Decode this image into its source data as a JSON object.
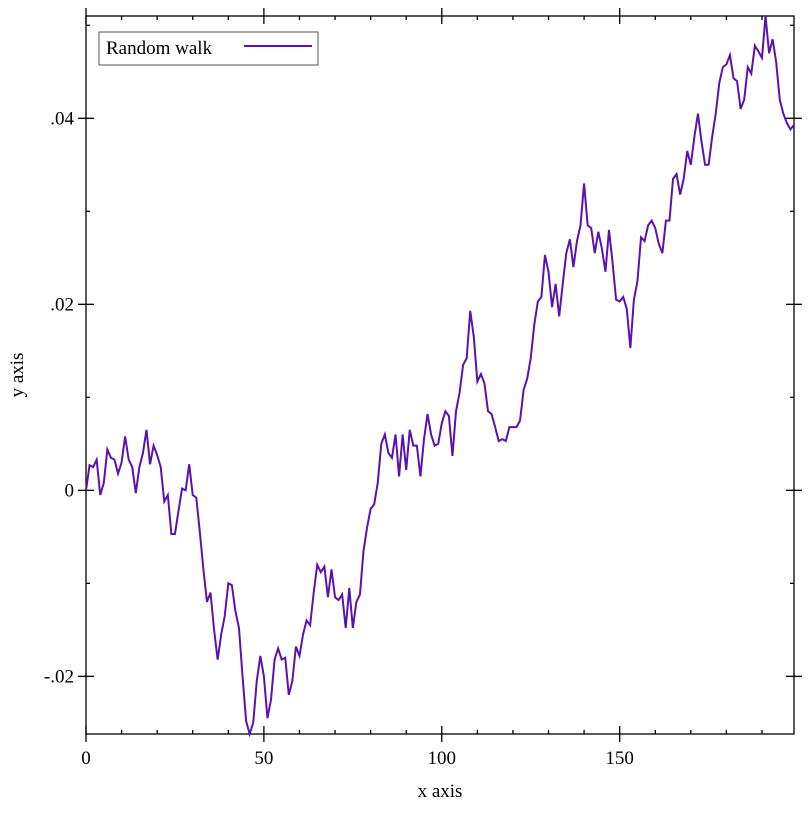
{
  "chart_data": {
    "type": "line",
    "xlabel": "x axis",
    "ylabel": "y axis",
    "legend": "top-left",
    "xlim": [
      0,
      199
    ],
    "ylim": [
      -0.0262,
      0.051
    ],
    "xticks": [
      0,
      50,
      100,
      150
    ],
    "xminorticks": [
      10,
      20,
      30,
      40,
      60,
      70,
      80,
      90,
      110,
      120,
      130,
      140,
      160,
      170,
      180,
      190
    ],
    "yticks": [
      {
        "value": -0.02,
        "label": "-.02"
      },
      0,
      {
        "value": 0.02,
        "label": ".02"
      },
      {
        "value": 0.04,
        "label": ".04"
      }
    ],
    "yminorticks": [
      -0.01,
      0.01,
      0.03,
      0.05
    ],
    "x": [
      0,
      1,
      2,
      3,
      4,
      5,
      6,
      7,
      8,
      9,
      10,
      11,
      12,
      13,
      14,
      15,
      16,
      17,
      18,
      19,
      20,
      21,
      22,
      23,
      24,
      25,
      26,
      27,
      28,
      29,
      30,
      31,
      32,
      33,
      34,
      35,
      36,
      37,
      38,
      39,
      40,
      41,
      42,
      43,
      44,
      45,
      46,
      47,
      48,
      49,
      50,
      51,
      52,
      53,
      54,
      55,
      56,
      57,
      58,
      59,
      60,
      61,
      62,
      63,
      64,
      65,
      66,
      67,
      68,
      69,
      70,
      71,
      72,
      73,
      74,
      75,
      76,
      77,
      78,
      79,
      80,
      81,
      82,
      83,
      84,
      85,
      86,
      87,
      88,
      89,
      90,
      91,
      92,
      93,
      94,
      95,
      96,
      97,
      98,
      99,
      100,
      101,
      102,
      103,
      104,
      105,
      106,
      107,
      108,
      109,
      110,
      111,
      112,
      113,
      114,
      115,
      116,
      117,
      118,
      119,
      120,
      121,
      122,
      123,
      124,
      125,
      126,
      127,
      128,
      129,
      130,
      131,
      132,
      133,
      134,
      135,
      136,
      137,
      138,
      139,
      140,
      141,
      142,
      143,
      144,
      145,
      146,
      147,
      148,
      149,
      150,
      151,
      152,
      153,
      154,
      155,
      156,
      157,
      158,
      159,
      160,
      161,
      162,
      163,
      164,
      165,
      166,
      167,
      168,
      169,
      170,
      171,
      172,
      173,
      174,
      175,
      176,
      177,
      178,
      179,
      180,
      181,
      182,
      183,
      184,
      185,
      186,
      187,
      188,
      189,
      190,
      191,
      192,
      193,
      194,
      195,
      196,
      197,
      198,
      199
    ],
    "series": [
      {
        "name": "Random walk",
        "color": "#5a12b0",
        "values": [
          0.0,
          0.0027,
          0.0025,
          0.0033,
          -0.0005,
          0.0008,
          0.0044,
          0.0035,
          0.0033,
          0.0018,
          0.003,
          0.0058,
          0.0033,
          0.0025,
          -0.0003,
          0.0025,
          0.004,
          0.0065,
          0.0028,
          0.0048,
          0.0038,
          0.0025,
          -0.0012,
          -0.0005,
          -0.0047,
          -0.0047,
          -0.0022,
          0.0002,
          0.0,
          0.0028,
          -0.0005,
          -0.0008,
          -0.0045,
          -0.0085,
          -0.012,
          -0.011,
          -0.015,
          -0.0182,
          -0.0155,
          -0.0135,
          -0.01,
          -0.0102,
          -0.013,
          -0.0148,
          -0.02,
          -0.0248,
          -0.0262,
          -0.025,
          -0.0205,
          -0.0178,
          -0.02,
          -0.0245,
          -0.0225,
          -0.0182,
          -0.017,
          -0.0182,
          -0.018,
          -0.022,
          -0.0205,
          -0.0168,
          -0.0178,
          -0.0155,
          -0.014,
          -0.0145,
          -0.011,
          -0.008,
          -0.0088,
          -0.0082,
          -0.0115,
          -0.0085,
          -0.0115,
          -0.0118,
          -0.0112,
          -0.0148,
          -0.0105,
          -0.0148,
          -0.012,
          -0.0112,
          -0.0065,
          -0.004,
          -0.002,
          -0.0015,
          0.0008,
          0.005,
          0.006,
          0.004,
          0.0035,
          0.006,
          0.0015,
          0.006,
          0.0022,
          0.0065,
          0.0048,
          0.0048,
          0.0015,
          0.0055,
          0.0082,
          0.006,
          0.0048,
          0.005,
          0.0072,
          0.0085,
          0.008,
          0.0037,
          0.0085,
          0.0105,
          0.0135,
          0.0142,
          0.0193,
          0.0165,
          0.0117,
          0.0125,
          0.0115,
          0.0085,
          0.0082,
          0.0068,
          0.0053,
          0.0055,
          0.0053,
          0.0068,
          0.0068,
          0.0068,
          0.0075,
          0.0108,
          0.012,
          0.0142,
          0.0178,
          0.0203,
          0.0208,
          0.0253,
          0.0235,
          0.0197,
          0.0222,
          0.0187,
          0.0222,
          0.0255,
          0.027,
          0.024,
          0.0268,
          0.0285,
          0.033,
          0.0285,
          0.0282,
          0.0255,
          0.0278,
          0.026,
          0.0235,
          0.028,
          0.0245,
          0.0205,
          0.0203,
          0.0208,
          0.0195,
          0.0153,
          0.0205,
          0.0225,
          0.0272,
          0.0268,
          0.0285,
          0.029,
          0.0282,
          0.0265,
          0.0255,
          0.029,
          0.029,
          0.0335,
          0.034,
          0.0318,
          0.0335,
          0.0365,
          0.035,
          0.038,
          0.0405,
          0.0375,
          0.035,
          0.035,
          0.038,
          0.0405,
          0.0438,
          0.0455,
          0.0458,
          0.0468,
          0.0443,
          0.044,
          0.041,
          0.042,
          0.0455,
          0.0448,
          0.0478,
          0.0472,
          0.0465,
          0.051,
          0.047,
          0.0485,
          0.046,
          0.042,
          0.0405,
          0.0395,
          0.0388,
          0.0393
        ]
      }
    ]
  }
}
